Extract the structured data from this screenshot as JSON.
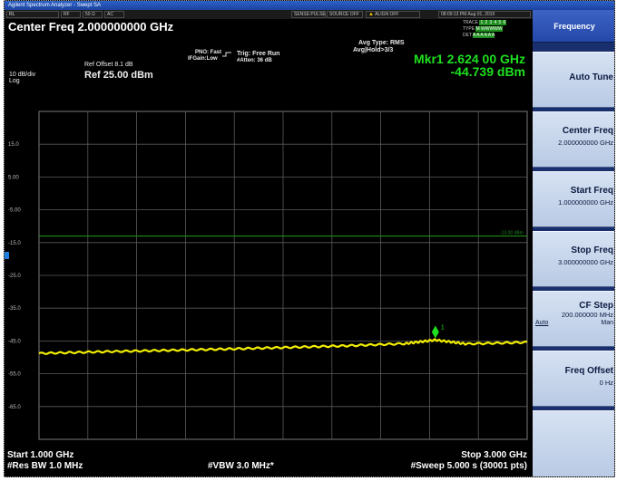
{
  "window": {
    "title": "Agilent Spectrum Analyzer - Swept SA"
  },
  "status": {
    "rl": "RL",
    "rf": "RF",
    "impedance": "50 Ω",
    "coupling": "AC",
    "sense": "SENSE:PULSE",
    "source": "SOURCE OFF",
    "align": "ALIGN OFF",
    "datetime": "08:09:13 PM Aug 01, 2019",
    "pno": "PNO: Fast",
    "ifgain": "IFGain:Low",
    "trig": "Trig: Free Run",
    "atten": "#Atten: 36 dB",
    "avg_type": "Avg Type: RMS",
    "avg_hold": "Avg|Hold>3/3",
    "trace_label": "TRACE",
    "type_label": "TYPE",
    "det_label": "DET",
    "trace_digits": [
      "1",
      "2",
      "3",
      "4",
      "5",
      "6"
    ],
    "type_value": "M WWWWW",
    "det_value": "A A A A A A"
  },
  "center_freq": "Center Freq 2.000000000 GHz",
  "marker": {
    "label": "Mkr1 2.624 00 GHz",
    "value": "-44.739 dBm",
    "tag": "1"
  },
  "ref": {
    "offset": "Ref Offset 8.1 dB",
    "level": "Ref 25.00 dBm",
    "scale": "10 dB/div",
    "log": "Log"
  },
  "y_ticks": [
    "15.0",
    "5.00",
    "-5.00",
    "-15.0",
    "-25.0",
    "-35.0",
    "-45.0",
    "-55.0",
    "-65.0"
  ],
  "limit_label": "-13.00 dBm",
  "bottom": {
    "start": "Start 1.000 GHz",
    "stop": "Stop 3.000 GHz",
    "rbw": "#Res BW 1.0 MHz",
    "vbw": "#VBW 3.0 MHz*",
    "sweep": "#Sweep  5.000 s (30001 pts)"
  },
  "softkeys": {
    "menu_title": "Frequency",
    "auto_tune": "Auto Tune",
    "center_freq": {
      "label": "Center Freq",
      "value": "2.000000000 GHz"
    },
    "start_freq": {
      "label": "Start Freq",
      "value": "1.000000000 GHz"
    },
    "stop_freq": {
      "label": "Stop Freq",
      "value": "3.000000000 GHz"
    },
    "cf_step": {
      "label": "CF Step",
      "value": "200.000000 MHz",
      "auto": "Auto",
      "man": "Man"
    },
    "freq_offset": {
      "label": "Freq Offset",
      "value": "0 Hz"
    }
  },
  "chart_data": {
    "type": "line",
    "x_range_ghz": [
      1.0,
      3.0
    ],
    "y_range_dbm": [
      -75,
      25
    ],
    "ref_level_dbm": 25,
    "db_per_div": 10,
    "grid": true,
    "limit_line_dbm": -13,
    "trace_color": "#f2ee00",
    "limit_color": "#1f8a1f",
    "series": [
      {
        "x": [
          1.0,
          1.25,
          1.5,
          1.75,
          2.0,
          2.25,
          2.5,
          2.624,
          2.75,
          3.0
        ],
        "y": [
          -48.8,
          -48.3,
          -47.9,
          -47.5,
          -47.0,
          -46.5,
          -45.8,
          -44.7,
          -45.9,
          -45.4
        ]
      }
    ],
    "marker": {
      "x": 2.624,
      "y": -44.739
    }
  },
  "colors": {
    "background": "#000000",
    "grid": "#5a5a5a",
    "softkey_bg": "#c7d5ec",
    "marker_green": "#1fe01f"
  }
}
